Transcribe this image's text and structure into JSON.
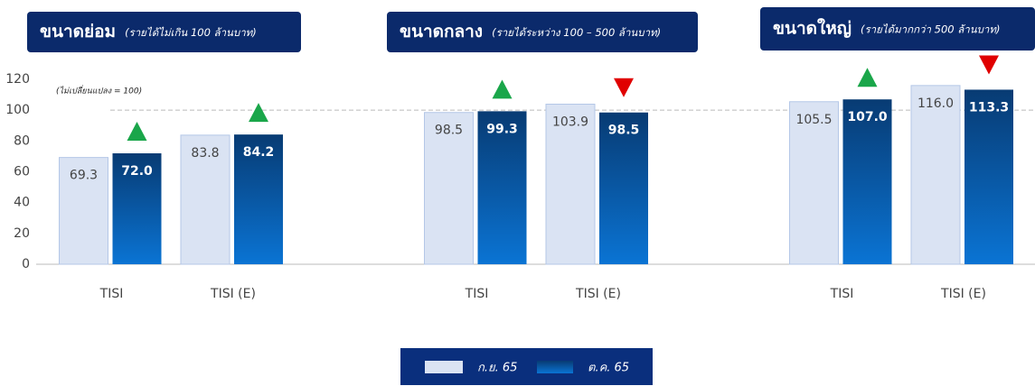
{
  "chart_data": {
    "type": "bar",
    "groups": [
      {
        "title": "ขนาดย่อม",
        "subtitle": "(รายได้ไม่เกิน 100 ล้านบาท)"
      },
      {
        "title": "ขนาดกลาง",
        "subtitle": "(รายได้ระหว่าง 100 – 500 ล้านบาท)"
      },
      {
        "title": "ขนาดใหญ่",
        "subtitle": "(รายได้มากกว่า 500 ล้านบาท)"
      }
    ],
    "categories": [
      "TISI",
      "TISI (E)",
      "TISI",
      "TISI (E)",
      "TISI",
      "TISI (E)"
    ],
    "series": [
      {
        "name": "ก.ย. 65",
        "color": "#dae3f3",
        "values": [
          69.3,
          83.8,
          98.5,
          103.9,
          105.5,
          116.0
        ],
        "value_labels": [
          "69.3",
          "83.8",
          "98.5",
          "103.9",
          "105.5",
          "116.0"
        ]
      },
      {
        "name": "ต.ค. 65",
        "color": "#0a63b4",
        "values": [
          72.0,
          84.2,
          99.3,
          98.5,
          107.0,
          113.3
        ],
        "value_labels": [
          "72.0",
          "84.2",
          "99.3",
          "98.5",
          "107.0",
          "113.3"
        ]
      }
    ],
    "reference_line": {
      "value": 100,
      "label": "(ไม่เปลี่ยนแปลง = 100)"
    },
    "increase_color": "#1aa64a",
    "decrease_color": "#e00000",
    "ylim": [
      0,
      120
    ],
    "yticks": [
      0,
      20,
      40,
      60,
      80,
      100,
      120
    ],
    "grid": false
  }
}
